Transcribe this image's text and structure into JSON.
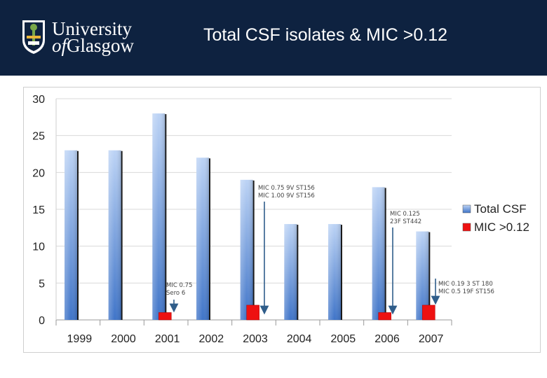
{
  "header": {
    "logo_line1": "University",
    "logo_line2_of": "of",
    "logo_line2_rest": "Glasgow",
    "title": "Total CSF isolates & MIC >0.12",
    "background": "#0e2240"
  },
  "chart_data": {
    "type": "bar",
    "title": "",
    "xlabel": "",
    "ylabel": "",
    "ylim": [
      0,
      30
    ],
    "yticks": [
      0,
      5,
      10,
      15,
      20,
      25,
      30
    ],
    "categories": [
      "1999",
      "2000",
      "2001",
      "2002",
      "2003",
      "2004",
      "2005",
      "2006",
      "2007"
    ],
    "series": [
      {
        "name": "Total  CSF",
        "color": "#5b8fd9",
        "values": [
          23,
          23,
          28,
          22,
          19,
          13,
          13,
          18,
          12
        ]
      },
      {
        "name": "MIC >0.12",
        "color": "#ee1111",
        "values": [
          0,
          0,
          1,
          0,
          2,
          0,
          0,
          1,
          2
        ]
      }
    ],
    "grid": true,
    "legend": "right",
    "annotations": [
      {
        "category": "2001",
        "lines": [
          "MIC 0.75",
          "Sero 6"
        ]
      },
      {
        "category": "2003",
        "lines": [
          "MIC 0.75 9V ST156",
          "MIC 1.00 9V ST156"
        ]
      },
      {
        "category": "2006",
        "lines": [
          "MIC 0.125",
          "23F ST442"
        ]
      },
      {
        "category": "2007",
        "lines": [
          "MIC 0.19 3 ST 180",
          "MIC 0.5 19F ST156"
        ]
      }
    ]
  }
}
